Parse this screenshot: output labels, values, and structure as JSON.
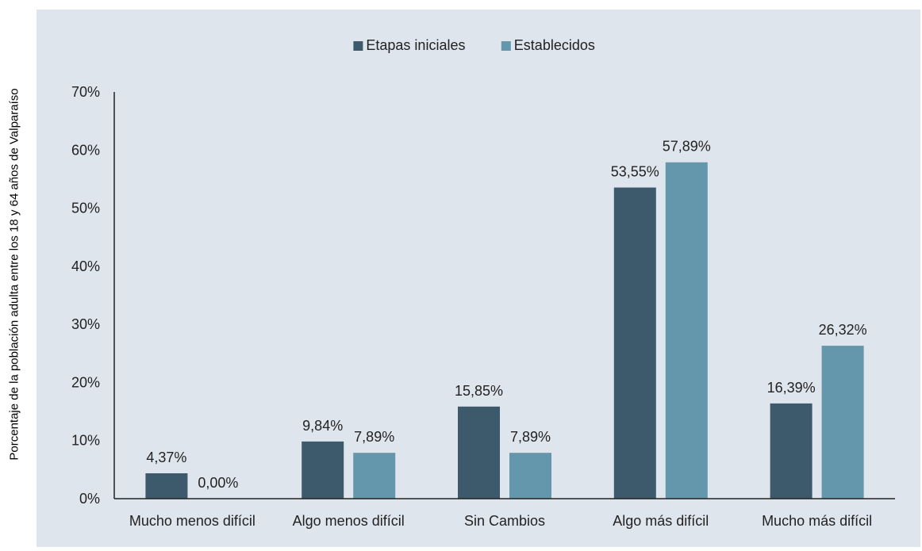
{
  "chart_data": {
    "type": "bar",
    "categories": [
      "Mucho menos difícil",
      "Algo menos difícil",
      "Sin Cambios",
      "Algo más difícil",
      "Mucho más difícil"
    ],
    "series": [
      {
        "name": "Etapas iniciales",
        "values": [
          4.37,
          9.84,
          15.85,
          53.55,
          16.39
        ],
        "labels": [
          "4,37%",
          "9,84%",
          "15,85%",
          "53,55%",
          "16,39%"
        ],
        "color": "#3d5a6c"
      },
      {
        "name": "Establecidos",
        "values": [
          0.0,
          7.89,
          7.89,
          57.89,
          26.32
        ],
        "labels": [
          "0,00%",
          "7,89%",
          "7,89%",
          "57,89%",
          "26,32%"
        ],
        "color": "#6497ab"
      }
    ],
    "ylabel": "Porcentaje de la población adulta entre los 18 y 64 años de Valparaíso",
    "xlabel": "",
    "ylim": [
      0,
      70
    ],
    "yticks": [
      "0%",
      "10%",
      "20%",
      "30%",
      "40%",
      "50%",
      "60%",
      "70%"
    ],
    "legend_position": "top-center",
    "background": "#dfe5ed",
    "grid": false
  }
}
